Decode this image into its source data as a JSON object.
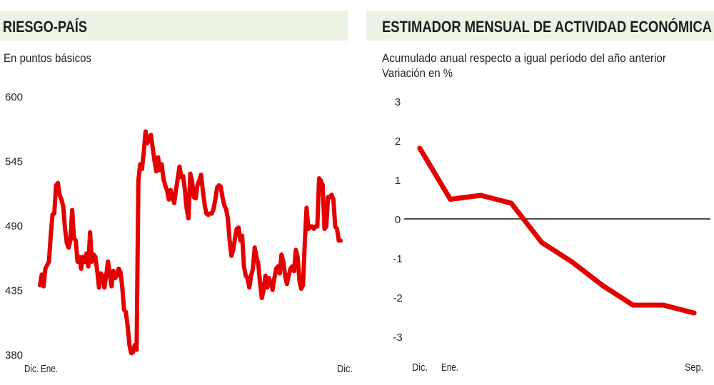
{
  "colors": {
    "line": "#e30000",
    "header_band": "#ecf3e4",
    "zero_line": "#111111",
    "text": "#222222"
  },
  "chart_data": [
    {
      "type": "line",
      "title": "RIESGO-PAÍS",
      "subtitle": "En puntos básicos",
      "ylim": [
        380,
        600
      ],
      "yticks": [
        "600",
        "545",
        "490",
        "435",
        "380"
      ],
      "ytick_values": [
        600,
        545,
        490,
        435,
        380
      ],
      "xtick_labels": [
        "Dic.",
        "Ene.",
        "Dic."
      ],
      "grid": false,
      "values": [
        439,
        448,
        438,
        453,
        456,
        459,
        481,
        499,
        500,
        524,
        526,
        516,
        512,
        506,
        487,
        475,
        471,
        477,
        503,
        479,
        477,
        459,
        463,
        453,
        463,
        459,
        466,
        455,
        484,
        459,
        465,
        463,
        451,
        437,
        449,
        447,
        437,
        447,
        459,
        449,
        438,
        451,
        445,
        447,
        453,
        450,
        437,
        418,
        416,
        404,
        388,
        381,
        382,
        388,
        384,
        528,
        542,
        538,
        552,
        570,
        560,
        565,
        567,
        556,
        545,
        536,
        548,
        537,
        542,
        530,
        524,
        520,
        512,
        520,
        514,
        509,
        520,
        530,
        540,
        531,
        532,
        520,
        504,
        496,
        534,
        528,
        514,
        513,
        524,
        528,
        533,
        520,
        508,
        500,
        499,
        500,
        500,
        504,
        512,
        522,
        524,
        523,
        514,
        507,
        504,
        496,
        477,
        464,
        469,
        479,
        487,
        488,
        477,
        481,
        455,
        447,
        445,
        437,
        447,
        453,
        471,
        463,
        457,
        441,
        428,
        435,
        447,
        437,
        445,
        441,
        435,
        445,
        453,
        455,
        449,
        465,
        459,
        447,
        440,
        447,
        453,
        455,
        451,
        469,
        463,
        443,
        436,
        439,
        475,
        505,
        487,
        489,
        489,
        487,
        489,
        489,
        530,
        528,
        524,
        487,
        489,
        514,
        514,
        516,
        512,
        489,
        487,
        477,
        477
      ]
    },
    {
      "type": "line",
      "title": "ESTIMADOR MENSUAL DE ACTIVIDAD ECONÓMICA",
      "subtitle_lines": [
        "Acumulado anual respecto a igual período del año anterior",
        "Variación en %"
      ],
      "ylim": [
        -3,
        3
      ],
      "yticks": [
        "3",
        "2",
        "1",
        "0",
        "-1",
        "-2",
        "-3"
      ],
      "ytick_values": [
        3,
        2,
        1,
        0,
        -1,
        -2,
        -3
      ],
      "xtick_labels": [
        "Dic.",
        "Ene.",
        "Sep."
      ],
      "grid": false,
      "reference_line": 0,
      "values": [
        1.8,
        0.5,
        0.6,
        0.4,
        -0.6,
        -1.1,
        -1.7,
        -2.2,
        -2.2,
        -2.4
      ]
    }
  ]
}
